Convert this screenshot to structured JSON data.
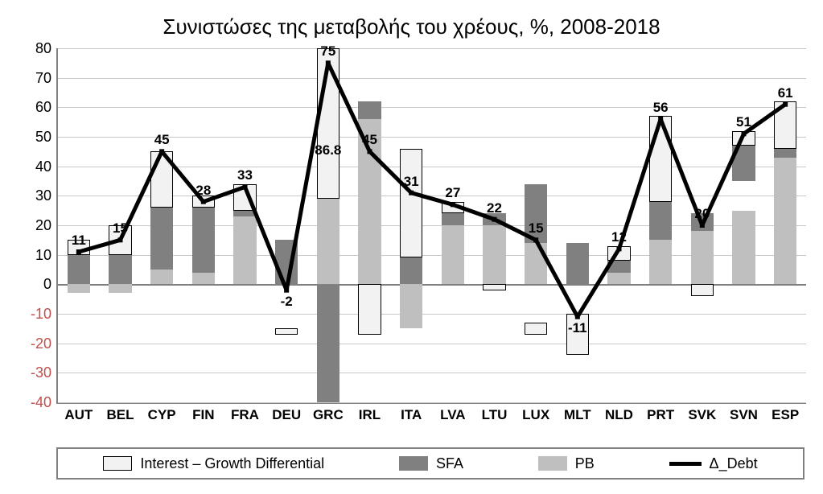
{
  "chart": {
    "title": "Συνιστώσες της μεταβολής του χρέους, %, 2008-2018",
    "title_fontsize": 26,
    "background_color": "#ffffff",
    "grid_color": "#c8c8c8",
    "axis_color": "#808080",
    "ylim": [
      -40,
      80
    ],
    "ytick_step": 10,
    "negative_tick_color": "#c0504d",
    "categories": [
      "AUT",
      "BEL",
      "CYP",
      "FIN",
      "FRA",
      "DEU",
      "GRC",
      "IRL",
      "ITA",
      "LVA",
      "LTU",
      "LUX",
      "MLT",
      "NLD",
      "PRT",
      "SVK",
      "SVN",
      "ESP"
    ],
    "series": {
      "igd": {
        "label": "Interest – Growth Differential",
        "color": "#f2f2f2",
        "border": "#000000"
      },
      "sfa": {
        "label": "SFA",
        "color": "#808080"
      },
      "pb": {
        "label": "PB",
        "color": "#bfbfbf"
      },
      "debt": {
        "label": "Δ_Debt",
        "color": "#000000",
        "line_width": 5
      }
    },
    "stacks": {
      "igd": [
        {
          "from": 10,
          "to": 15
        },
        {
          "from": 10,
          "to": 20
        },
        {
          "from": 26,
          "to": 45
        },
        {
          "from": 26,
          "to": 30
        },
        {
          "from": 25,
          "to": 34
        },
        {
          "from": -17,
          "to": -15
        },
        {
          "from": 29,
          "to": 80
        },
        {
          "from": -17,
          "to": 0
        },
        {
          "from": 9,
          "to": 46
        },
        {
          "from": 24,
          "to": 28
        },
        {
          "from": -2,
          "to": 0
        },
        {
          "from": -17,
          "to": -13
        },
        {
          "from": -24,
          "to": -10
        },
        {
          "from": 8,
          "to": 13
        },
        {
          "from": 28,
          "to": 57
        },
        {
          "from": -4,
          "to": 0
        },
        {
          "from": 47,
          "to": 52
        },
        {
          "from": 46,
          "to": 62
        }
      ],
      "sfa": [
        {
          "from": 0,
          "to": 10
        },
        {
          "from": 0,
          "to": 10
        },
        {
          "from": 5,
          "to": 26
        },
        {
          "from": 4,
          "to": 26
        },
        {
          "from": 23,
          "to": 25
        },
        {
          "from": 0,
          "to": 15
        },
        {
          "from": -40,
          "to": 0
        },
        {
          "from": 56,
          "to": 62
        },
        {
          "from": 0,
          "to": 9
        },
        {
          "from": 20,
          "to": 24
        },
        {
          "from": 20,
          "to": 24
        },
        {
          "from": 14,
          "to": 34
        },
        {
          "from": 0,
          "to": 14
        },
        {
          "from": 4,
          "to": 8
        },
        {
          "from": 15,
          "to": 28
        },
        {
          "from": 18,
          "to": 24
        },
        {
          "from": 35,
          "to": 47
        },
        {
          "from": 43,
          "to": 46
        }
      ],
      "pb": [
        {
          "from": -3,
          "to": 0
        },
        {
          "from": -3,
          "to": 0
        },
        {
          "from": 0,
          "to": 5
        },
        {
          "from": 0,
          "to": 4
        },
        {
          "from": 0,
          "to": 23
        },
        {
          "from": 0,
          "to": 0
        },
        {
          "from": 0,
          "to": 29
        },
        {
          "from": 0,
          "to": 56
        },
        {
          "from": -15,
          "to": 0
        },
        {
          "from": 0,
          "to": 20
        },
        {
          "from": 0,
          "to": 20
        },
        {
          "from": 0,
          "to": 14
        },
        {
          "from": 0,
          "to": 0
        },
        {
          "from": 0,
          "to": 4
        },
        {
          "from": 0,
          "to": 15
        },
        {
          "from": 0,
          "to": 18
        },
        {
          "from": 0,
          "to": 25
        },
        {
          "from": 0,
          "to": 43
        }
      ]
    },
    "debt_line": [
      11,
      15,
      45,
      28,
      33,
      -2,
      75,
      45,
      31,
      27,
      22,
      15,
      -11,
      12,
      56,
      20,
      51,
      61
    ],
    "extra_labels": [
      {
        "cat": 6,
        "text": "86.8",
        "y_value": 48,
        "dy": 0
      }
    ],
    "bar_width": 0.55,
    "label_fontsize": 18,
    "xlabel_fontsize": 17
  }
}
